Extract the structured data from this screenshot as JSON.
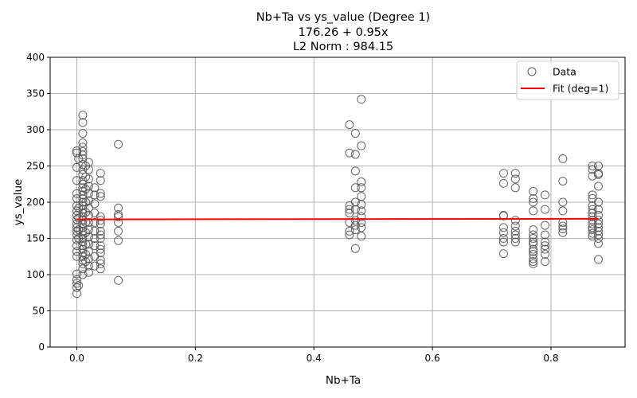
{
  "chart_data": {
    "type": "scatter",
    "title_lines": [
      "Nb+Ta vs ys_value (Degree 1)",
      "176.26 + 0.95x",
      "L2 Norm : 984.15"
    ],
    "xlabel": "Nb+Ta",
    "ylabel": "ys_value",
    "xlim": [
      -0.045,
      0.925
    ],
    "ylim": [
      0,
      400
    ],
    "xticks": [
      0.0,
      0.2,
      0.4,
      0.6,
      0.8
    ],
    "xtick_labels": [
      "0.0",
      "0.2",
      "0.4",
      "0.6",
      "0.8"
    ],
    "yticks": [
      0,
      50,
      100,
      150,
      200,
      250,
      300,
      350,
      400
    ],
    "ytick_labels": [
      "0",
      "50",
      "100",
      "150",
      "200",
      "250",
      "300",
      "350",
      "400"
    ],
    "grid": true,
    "legend_position": "top-right",
    "legend": [
      {
        "label": "Data",
        "kind": "marker",
        "color": "#555555"
      },
      {
        "label": "Fit (deg=1)",
        "kind": "line",
        "color": "#ff0000"
      }
    ],
    "fit": {
      "name": "Fit (deg=1)",
      "intercept": 176.26,
      "slope": 0.95,
      "x_range": [
        0.0,
        0.88
      ],
      "color": "#ff0000"
    },
    "series": [
      {
        "name": "Data",
        "color": "#555555",
        "points": [
          [
            0.0,
            74
          ],
          [
            0.0,
            82
          ],
          [
            0.0,
            88
          ],
          [
            0.0,
            93
          ],
          [
            0.0,
            101
          ],
          [
            0.0,
            125
          ],
          [
            0.0,
            132
          ],
          [
            0.0,
            140
          ],
          [
            0.0,
            148
          ],
          [
            0.0,
            155
          ],
          [
            0.0,
            160
          ],
          [
            0.0,
            165
          ],
          [
            0.0,
            170
          ],
          [
            0.0,
            176
          ],
          [
            0.0,
            182
          ],
          [
            0.0,
            188
          ],
          [
            0.0,
            195
          ],
          [
            0.0,
            205
          ],
          [
            0.0,
            212
          ],
          [
            0.0,
            230
          ],
          [
            0.0,
            248
          ],
          [
            0.0,
            268
          ],
          [
            0.0,
            271
          ],
          [
            0.003,
            85
          ],
          [
            0.003,
            150
          ],
          [
            0.003,
            162
          ],
          [
            0.003,
            178
          ],
          [
            0.003,
            192
          ],
          [
            0.003,
            260
          ],
          [
            0.01,
            100
          ],
          [
            0.01,
            108
          ],
          [
            0.01,
            115
          ],
          [
            0.01,
            120
          ],
          [
            0.01,
            125
          ],
          [
            0.01,
            130
          ],
          [
            0.01,
            135
          ],
          [
            0.01,
            140
          ],
          [
            0.01,
            145
          ],
          [
            0.01,
            150
          ],
          [
            0.01,
            155
          ],
          [
            0.01,
            160
          ],
          [
            0.01,
            165
          ],
          [
            0.01,
            170
          ],
          [
            0.01,
            175
          ],
          [
            0.01,
            180
          ],
          [
            0.01,
            185
          ],
          [
            0.01,
            190
          ],
          [
            0.01,
            195
          ],
          [
            0.01,
            200
          ],
          [
            0.01,
            205
          ],
          [
            0.01,
            210
          ],
          [
            0.01,
            215
          ],
          [
            0.01,
            220
          ],
          [
            0.01,
            225
          ],
          [
            0.01,
            230
          ],
          [
            0.01,
            238
          ],
          [
            0.01,
            245
          ],
          [
            0.01,
            252
          ],
          [
            0.01,
            260
          ],
          [
            0.01,
            265
          ],
          [
            0.01,
            270
          ],
          [
            0.01,
            276
          ],
          [
            0.01,
            282
          ],
          [
            0.01,
            295
          ],
          [
            0.01,
            310
          ],
          [
            0.01,
            320
          ],
          [
            0.015,
            118
          ],
          [
            0.015,
            128
          ],
          [
            0.015,
            142
          ],
          [
            0.015,
            158
          ],
          [
            0.015,
            172
          ],
          [
            0.015,
            186
          ],
          [
            0.015,
            200
          ],
          [
            0.015,
            218
          ],
          [
            0.015,
            235
          ],
          [
            0.015,
            250
          ],
          [
            0.02,
            103
          ],
          [
            0.02,
            112
          ],
          [
            0.02,
            122
          ],
          [
            0.02,
            132
          ],
          [
            0.02,
            142
          ],
          [
            0.02,
            152
          ],
          [
            0.02,
            162
          ],
          [
            0.02,
            172
          ],
          [
            0.02,
            182
          ],
          [
            0.02,
            192
          ],
          [
            0.02,
            202
          ],
          [
            0.02,
            212
          ],
          [
            0.02,
            222
          ],
          [
            0.02,
            232
          ],
          [
            0.02,
            245
          ],
          [
            0.02,
            255
          ],
          [
            0.03,
            112
          ],
          [
            0.03,
            125
          ],
          [
            0.03,
            140
          ],
          [
            0.03,
            150
          ],
          [
            0.03,
            160
          ],
          [
            0.03,
            172
          ],
          [
            0.03,
            185
          ],
          [
            0.03,
            198
          ],
          [
            0.03,
            210
          ],
          [
            0.03,
            220
          ],
          [
            0.04,
            108
          ],
          [
            0.04,
            115
          ],
          [
            0.04,
            120
          ],
          [
            0.04,
            130
          ],
          [
            0.04,
            135
          ],
          [
            0.04,
            140
          ],
          [
            0.04,
            150
          ],
          [
            0.04,
            155
          ],
          [
            0.04,
            160
          ],
          [
            0.04,
            170
          ],
          [
            0.04,
            175
          ],
          [
            0.04,
            180
          ],
          [
            0.04,
            208
          ],
          [
            0.04,
            212
          ],
          [
            0.04,
            230
          ],
          [
            0.04,
            240
          ],
          [
            0.07,
            92
          ],
          [
            0.07,
            147
          ],
          [
            0.07,
            160
          ],
          [
            0.07,
            172
          ],
          [
            0.07,
            180
          ],
          [
            0.07,
            183
          ],
          [
            0.07,
            192
          ],
          [
            0.07,
            280
          ],
          [
            0.46,
            155
          ],
          [
            0.46,
            160
          ],
          [
            0.46,
            172
          ],
          [
            0.46,
            185
          ],
          [
            0.46,
            190
          ],
          [
            0.46,
            195
          ],
          [
            0.46,
            268
          ],
          [
            0.46,
            307
          ],
          [
            0.47,
            136
          ],
          [
            0.47,
            162
          ],
          [
            0.47,
            168
          ],
          [
            0.47,
            175
          ],
          [
            0.47,
            190
          ],
          [
            0.47,
            200
          ],
          [
            0.47,
            220
          ],
          [
            0.47,
            243
          ],
          [
            0.47,
            266
          ],
          [
            0.47,
            295
          ],
          [
            0.48,
            153
          ],
          [
            0.48,
            165
          ],
          [
            0.48,
            172
          ],
          [
            0.48,
            180
          ],
          [
            0.48,
            188
          ],
          [
            0.48,
            197
          ],
          [
            0.48,
            208
          ],
          [
            0.48,
            220
          ],
          [
            0.48,
            228
          ],
          [
            0.48,
            278
          ],
          [
            0.48,
            342
          ],
          [
            0.72,
            129
          ],
          [
            0.72,
            145
          ],
          [
            0.72,
            150
          ],
          [
            0.72,
            158
          ],
          [
            0.72,
            165
          ],
          [
            0.72,
            181
          ],
          [
            0.72,
            182
          ],
          [
            0.72,
            226
          ],
          [
            0.72,
            240
          ],
          [
            0.74,
            145
          ],
          [
            0.74,
            150
          ],
          [
            0.74,
            155
          ],
          [
            0.74,
            160
          ],
          [
            0.74,
            167
          ],
          [
            0.74,
            175
          ],
          [
            0.74,
            220
          ],
          [
            0.74,
            232
          ],
          [
            0.74,
            240
          ],
          [
            0.77,
            115
          ],
          [
            0.77,
            118
          ],
          [
            0.77,
            122
          ],
          [
            0.77,
            128
          ],
          [
            0.77,
            132
          ],
          [
            0.77,
            135
          ],
          [
            0.77,
            142
          ],
          [
            0.77,
            145
          ],
          [
            0.77,
            150
          ],
          [
            0.77,
            155
          ],
          [
            0.77,
            162
          ],
          [
            0.77,
            188
          ],
          [
            0.77,
            200
          ],
          [
            0.77,
            205
          ],
          [
            0.77,
            215
          ],
          [
            0.79,
            118
          ],
          [
            0.79,
            128
          ],
          [
            0.79,
            135
          ],
          [
            0.79,
            140
          ],
          [
            0.79,
            145
          ],
          [
            0.79,
            155
          ],
          [
            0.79,
            168
          ],
          [
            0.79,
            190
          ],
          [
            0.79,
            210
          ],
          [
            0.82,
            158
          ],
          [
            0.82,
            163
          ],
          [
            0.82,
            167
          ],
          [
            0.82,
            172
          ],
          [
            0.82,
            188
          ],
          [
            0.82,
            200
          ],
          [
            0.82,
            229
          ],
          [
            0.82,
            260
          ],
          [
            0.87,
            153
          ],
          [
            0.87,
            157
          ],
          [
            0.87,
            162
          ],
          [
            0.87,
            165
          ],
          [
            0.87,
            170
          ],
          [
            0.87,
            175
          ],
          [
            0.87,
            180
          ],
          [
            0.87,
            185
          ],
          [
            0.87,
            190
          ],
          [
            0.87,
            195
          ],
          [
            0.87,
            205
          ],
          [
            0.87,
            210
          ],
          [
            0.87,
            236
          ],
          [
            0.87,
            245
          ],
          [
            0.87,
            250
          ],
          [
            0.88,
            121
          ],
          [
            0.88,
            143
          ],
          [
            0.88,
            150
          ],
          [
            0.88,
            155
          ],
          [
            0.88,
            160
          ],
          [
            0.88,
            165
          ],
          [
            0.88,
            170
          ],
          [
            0.88,
            175
          ],
          [
            0.88,
            182
          ],
          [
            0.88,
            190
          ],
          [
            0.88,
            200
          ],
          [
            0.88,
            222
          ],
          [
            0.88,
            238
          ],
          [
            0.88,
            240
          ],
          [
            0.88,
            250
          ]
        ]
      }
    ]
  }
}
